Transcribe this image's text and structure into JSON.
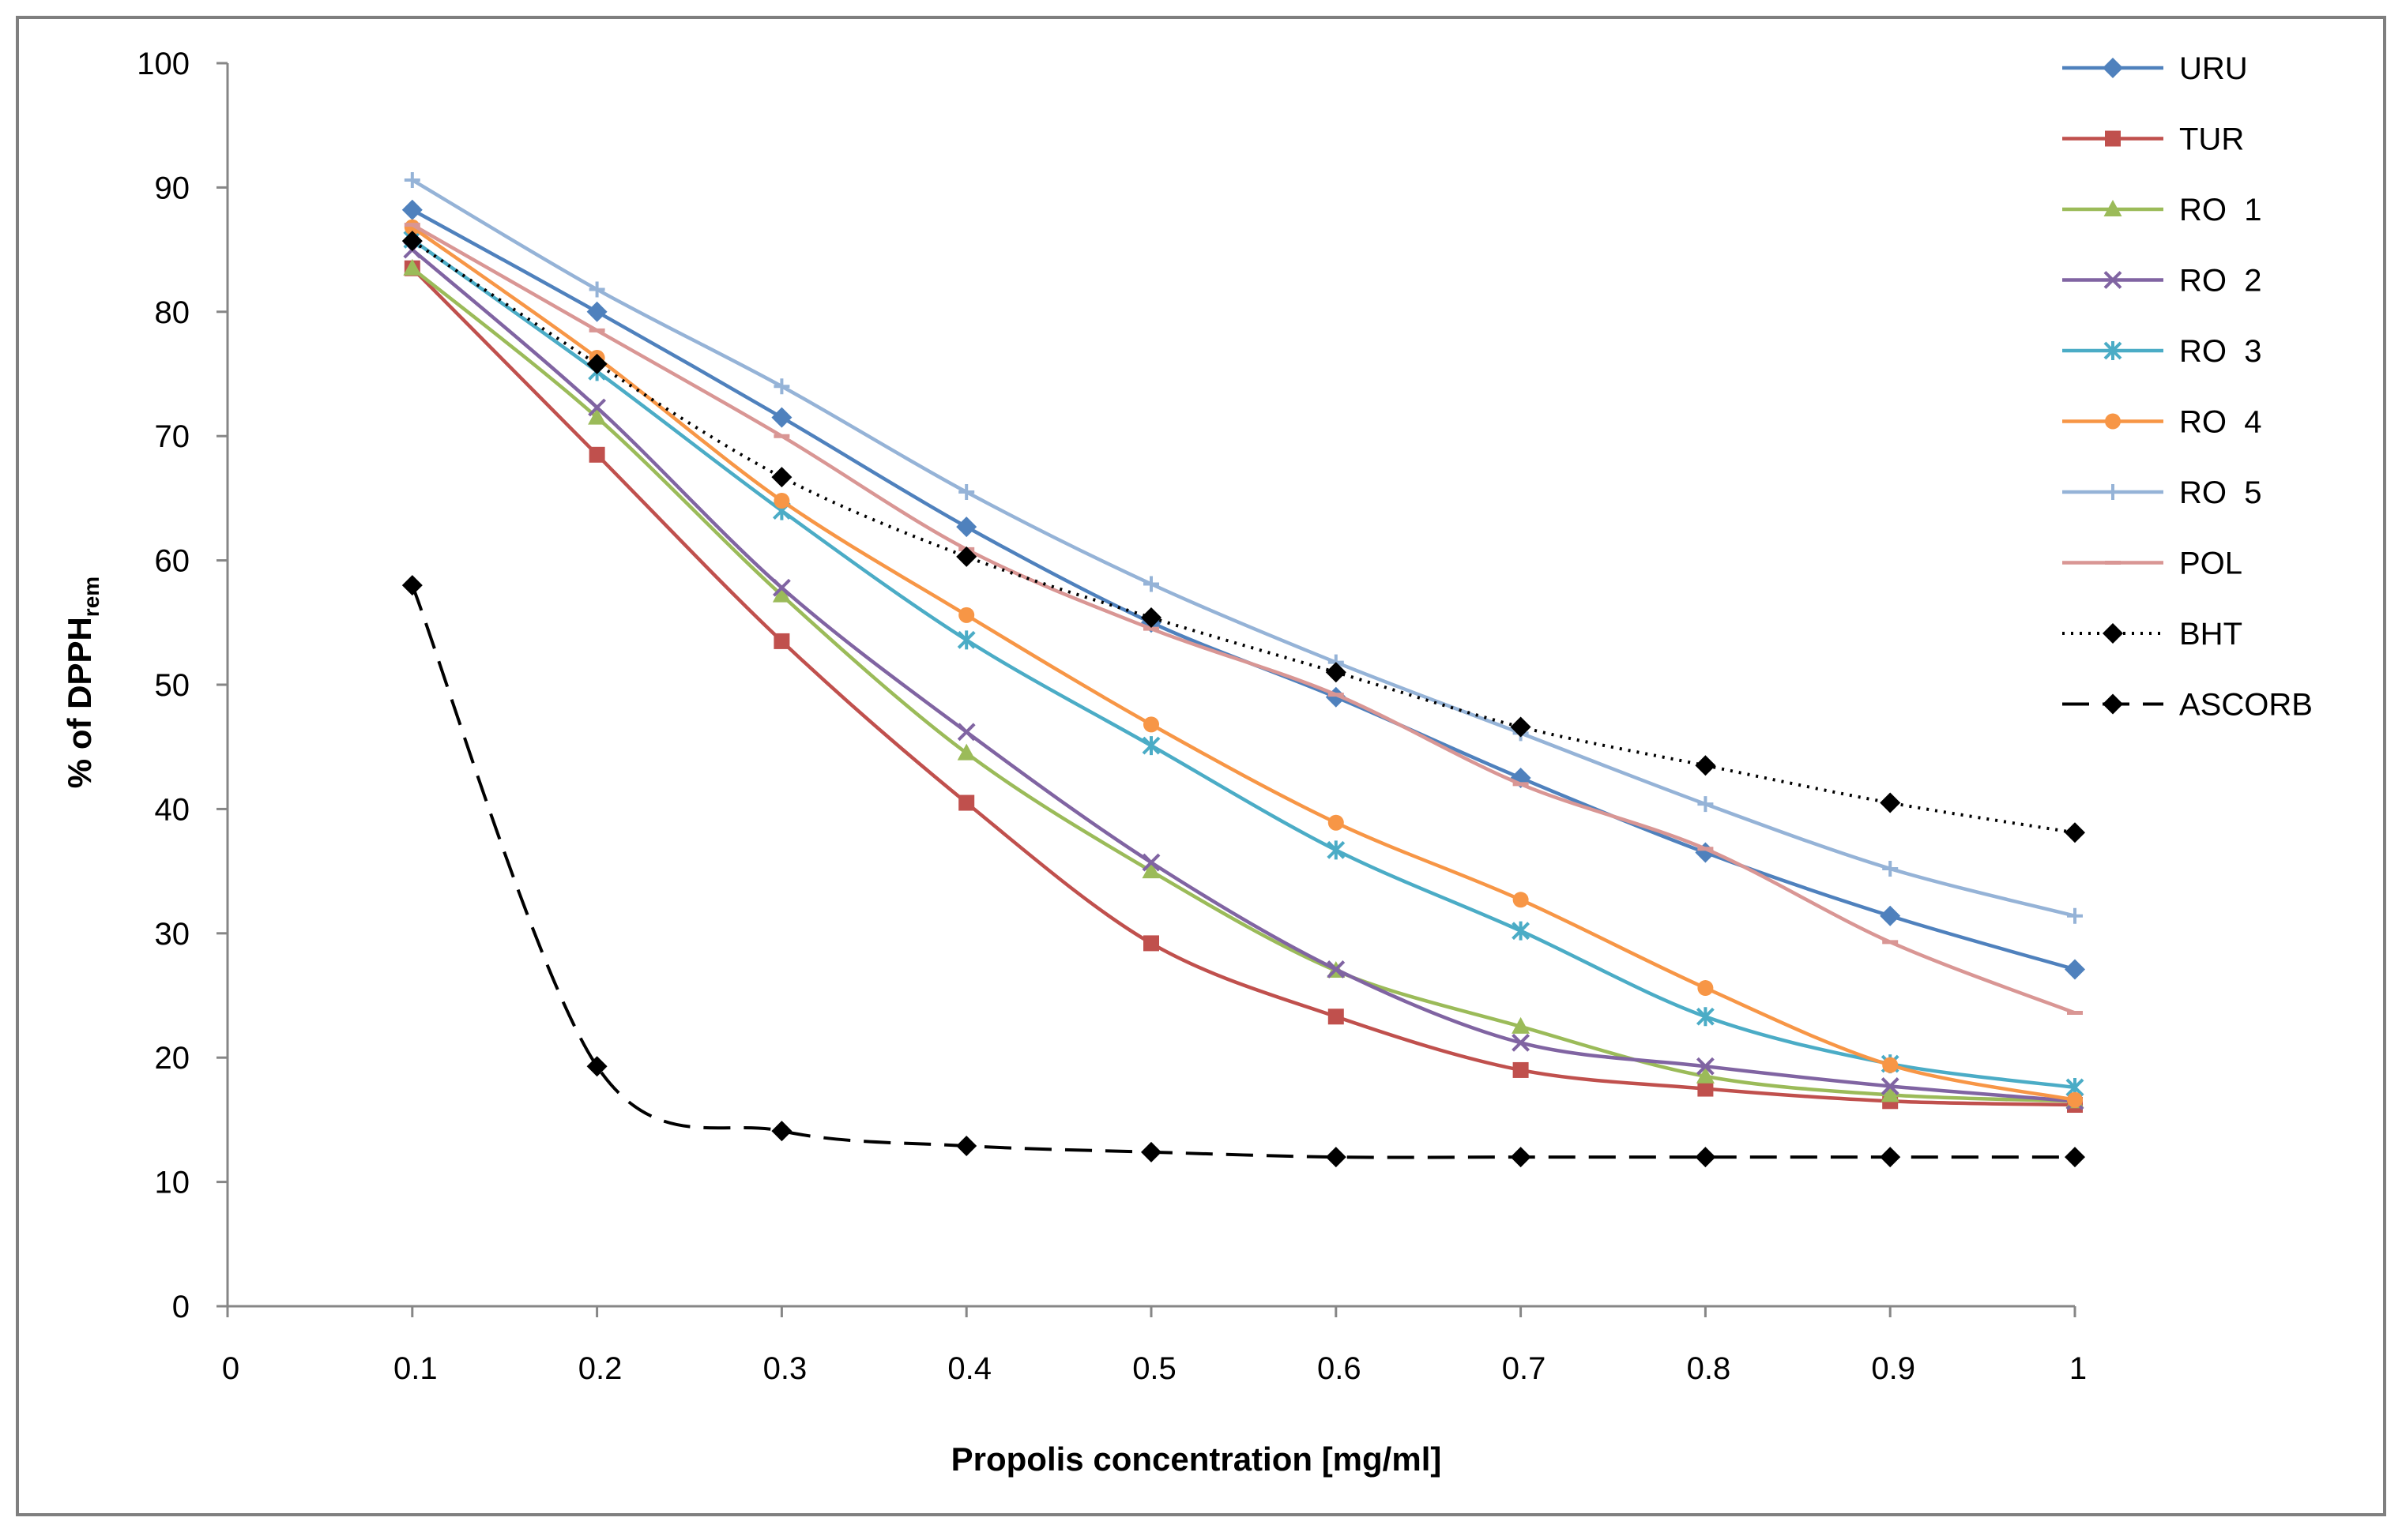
{
  "chart_data": {
    "type": "line",
    "title": "",
    "xlabel": "Propolis concentration [mg/ml]",
    "ylabel": "% of DPPH",
    "ylabel_subscript": "rem",
    "xlim": [
      0,
      1
    ],
    "ylim": [
      0,
      100
    ],
    "x_ticks": [
      "0",
      "0.1",
      "0.2",
      "0.3",
      "0.4",
      "0.5",
      "0.6",
      "0.7",
      "0.8",
      "0.9",
      "1"
    ],
    "y_ticks": [
      "0",
      "10",
      "20",
      "30",
      "40",
      "50",
      "60",
      "70",
      "80",
      "90",
      "100"
    ],
    "legend_position": "right",
    "x": [
      0.1,
      0.2,
      0.3,
      0.4,
      0.5,
      0.6,
      0.7,
      0.8,
      0.9,
      1.0
    ],
    "series": [
      {
        "name": "URU",
        "color": "#4f81bd",
        "marker": "diamond",
        "dash": "solid",
        "values": [
          88.2,
          80.0,
          71.5,
          62.7,
          55.0,
          49.0,
          42.5,
          36.5,
          31.4,
          27.1
        ]
      },
      {
        "name": "TUR",
        "color": "#c0504d",
        "marker": "square",
        "dash": "solid",
        "values": [
          83.5,
          68.5,
          53.5,
          40.5,
          29.2,
          23.3,
          19.0,
          17.5,
          16.5,
          16.2
        ]
      },
      {
        "name": "RO  1",
        "color": "#9bbb59",
        "marker": "triangle",
        "dash": "solid",
        "values": [
          83.5,
          71.5,
          57.2,
          44.5,
          35.0,
          27.0,
          22.5,
          18.5,
          17.0,
          16.5
        ]
      },
      {
        "name": "RO  2",
        "color": "#8064a2",
        "marker": "x",
        "dash": "solid",
        "values": [
          85.0,
          72.3,
          57.8,
          46.2,
          35.7,
          27.1,
          21.2,
          19.3,
          17.7,
          16.5
        ]
      },
      {
        "name": "RO  3",
        "color": "#4bacc6",
        "marker": "star",
        "dash": "solid",
        "values": [
          85.8,
          75.2,
          64.0,
          53.6,
          45.1,
          36.7,
          30.2,
          23.3,
          19.5,
          17.6
        ]
      },
      {
        "name": "RO  4",
        "color": "#f79646",
        "marker": "circle",
        "dash": "solid",
        "values": [
          86.8,
          76.3,
          64.8,
          55.6,
          46.8,
          38.9,
          32.7,
          25.6,
          19.4,
          16.6
        ]
      },
      {
        "name": "RO  5",
        "color": "#95b3d7",
        "marker": "plus",
        "dash": "solid",
        "values": [
          90.6,
          81.8,
          74.0,
          65.5,
          58.1,
          51.8,
          46.1,
          40.4,
          35.2,
          31.4
        ]
      },
      {
        "name": "POL",
        "color": "#d99694",
        "marker": "dash",
        "dash": "solid",
        "values": [
          87.0,
          78.5,
          70.0,
          60.9,
          54.5,
          49.2,
          42.0,
          36.8,
          29.3,
          23.6
        ]
      },
      {
        "name": "BHT",
        "color": "#000000",
        "marker": "diamond",
        "dash": "dotted",
        "values": [
          85.7,
          75.8,
          66.7,
          60.3,
          55.4,
          51.0,
          46.6,
          43.5,
          40.5,
          38.1
        ]
      },
      {
        "name": "ASCORB",
        "color": "#000000",
        "marker": "diamond",
        "dash": "dashed",
        "values": [
          58.0,
          19.3,
          14.1,
          12.9,
          12.4,
          12.0,
          12.0,
          12.0,
          12.0,
          12.0
        ]
      }
    ]
  }
}
